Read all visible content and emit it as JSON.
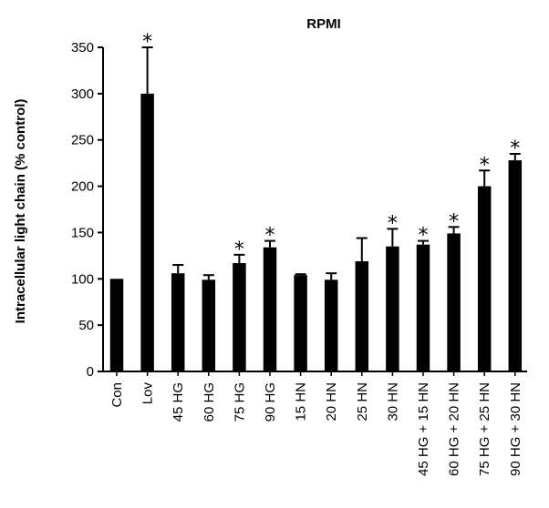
{
  "chart_data": {
    "type": "bar",
    "title": "RPMI",
    "ylabel": "Intracellular light chain (% control)",
    "xlabel": "",
    "ylim": [
      0,
      350
    ],
    "yticks": [
      0,
      50,
      100,
      150,
      200,
      250,
      300,
      350
    ],
    "grid": false,
    "bar_color": "#000000",
    "categories": [
      "Con",
      "Lov",
      "45 HG",
      "60 HG",
      "75 HG",
      "90 HG",
      "15 HN",
      "20 HN",
      "25 HN",
      "30 HN",
      "45 HG + 15 HN",
      "60 HG + 20 HN",
      "75 HG + 25 HN",
      "90 HG + 30 HN"
    ],
    "values": [
      100,
      300,
      106,
      99,
      117,
      134,
      104,
      99,
      119,
      135,
      137,
      149,
      200,
      228
    ],
    "errors": [
      0,
      50,
      9,
      5,
      9,
      7,
      1,
      7,
      25,
      19,
      4,
      7,
      17,
      7
    ],
    "significance": [
      "",
      "*",
      "",
      "",
      "*",
      "*",
      "",
      "",
      "",
      "*",
      "*",
      "*",
      "*",
      "*"
    ]
  }
}
